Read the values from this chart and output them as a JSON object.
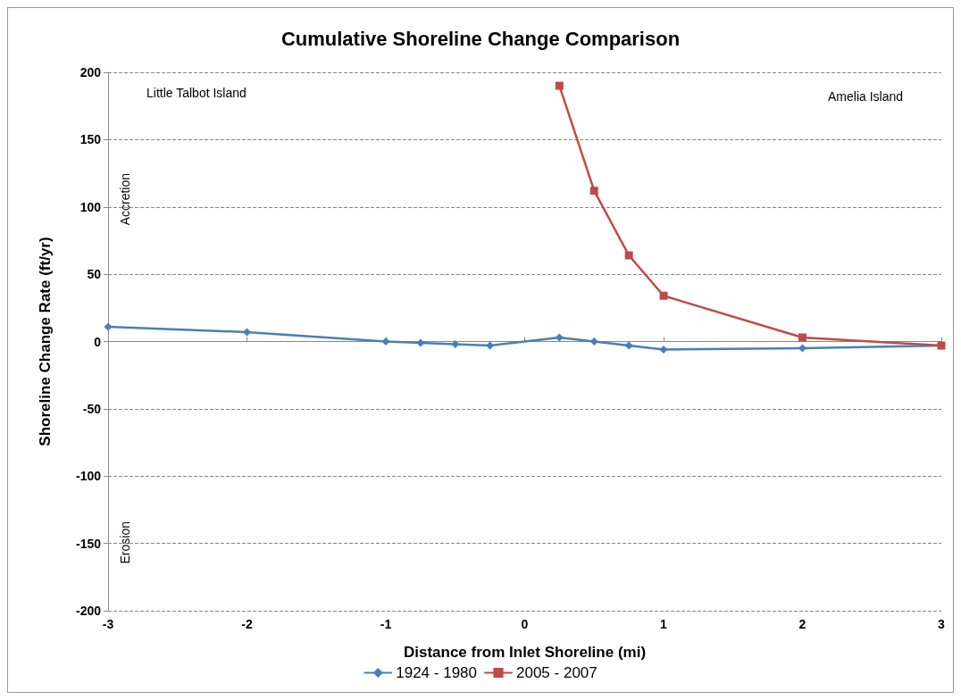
{
  "chart_data": {
    "type": "line",
    "title": "Cumulative Shoreline Change Comparison",
    "xlabel": "Distance from Inlet Shoreline (mi)",
    "ylabel": "Shoreline Change Rate (ft/yr)",
    "series": [
      {
        "name": "1924 - 1980",
        "color": "#4a7ebb",
        "marker": "diamond",
        "x": [
          -3,
          -2,
          -1,
          -0.75,
          -0.5,
          -0.25,
          0.25,
          0.5,
          0.75,
          1,
          2,
          3
        ],
        "values": [
          11,
          7,
          0,
          -1,
          -2,
          -3,
          3,
          0,
          -3,
          -6,
          -5,
          -3
        ]
      },
      {
        "name": "2005 - 2007",
        "color": "#be4b48",
        "marker": "square",
        "x": [
          0.25,
          0.5,
          0.75,
          1,
          2,
          3
        ],
        "values": [
          190,
          112,
          64,
          34,
          3,
          -3
        ]
      }
    ],
    "xlim": [
      -3,
      3
    ],
    "xticks": [
      -3,
      -2,
      -1,
      0,
      1,
      2,
      3
    ],
    "ylim": [
      -200,
      200
    ],
    "yticks": [
      -200,
      -150,
      -100,
      -50,
      0,
      50,
      100,
      150,
      200
    ],
    "grid": "y",
    "legend": "bottom",
    "line_style": "solid",
    "annotations": [
      "Little Talbot Island",
      "Amelia Island",
      "Accretion",
      "Erosion"
    ]
  }
}
